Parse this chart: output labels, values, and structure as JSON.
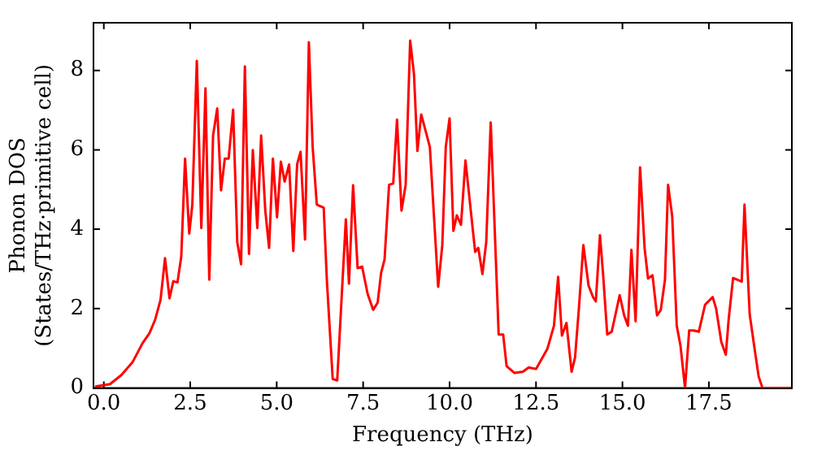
{
  "chart_data": {
    "type": "line",
    "xlabel": "Frequency (THz)",
    "ylabel": "Phonon DOS\n(States/THz·primitive cell)",
    "xlim": [
      -0.3,
      19.9
    ],
    "xticks": [
      {
        "value": 0,
        "label": "0.0"
      },
      {
        "value": 2.5,
        "label": "2.5"
      },
      {
        "value": 5,
        "label": "5.0"
      },
      {
        "value": 7.5,
        "label": "7.5"
      },
      {
        "value": 10,
        "label": "10.0"
      },
      {
        "value": 12.5,
        "label": "12.5"
      },
      {
        "value": 15,
        "label": "15.0"
      },
      {
        "value": 17.5,
        "label": "17.5"
      }
    ],
    "ylim": [
      0,
      9.2
    ],
    "yticks": [
      0,
      2,
      4,
      6,
      8
    ],
    "grid": false,
    "legend": false,
    "marker": "none",
    "line_style": "solid",
    "series": [
      {
        "color": "#ff0000",
        "x": [
          -0.25,
          0.18,
          0.51,
          0.83,
          1.12,
          1.32,
          1.48,
          1.64,
          1.77,
          1.9,
          2.01,
          2.13,
          2.24,
          2.35,
          2.47,
          2.56,
          2.69,
          2.82,
          2.94,
          3.05,
          3.16,
          3.28,
          3.39,
          3.5,
          3.61,
          3.74,
          3.86,
          3.97,
          4.08,
          4.2,
          4.31,
          4.44,
          4.55,
          4.67,
          4.78,
          4.89,
          5.01,
          5.12,
          5.23,
          5.36,
          5.48,
          5.59,
          5.69,
          5.82,
          5.93,
          6.04,
          6.16,
          6.36,
          6.45,
          6.62,
          6.75,
          7.0,
          7.09,
          7.21,
          7.34,
          7.47,
          7.63,
          7.79,
          7.92,
          8.02,
          8.12,
          8.25,
          8.37,
          8.48,
          8.61,
          8.73,
          8.86,
          8.97,
          9.07,
          9.18,
          9.43,
          9.67,
          9.79,
          9.89,
          10.0,
          10.11,
          10.21,
          10.33,
          10.46,
          10.74,
          10.83,
          10.95,
          11.06,
          11.19,
          11.42,
          11.55,
          11.65,
          11.88,
          12.12,
          12.29,
          12.5,
          12.83,
          13.02,
          13.14,
          13.25,
          13.38,
          13.53,
          13.63,
          13.74,
          13.87,
          14.02,
          14.15,
          14.23,
          14.35,
          14.44,
          14.56,
          14.69,
          14.8,
          14.92,
          15.05,
          15.16,
          15.26,
          15.38,
          15.51,
          15.64,
          15.74,
          15.87,
          16.0,
          16.11,
          16.23,
          16.32,
          16.44,
          16.57,
          16.68,
          16.81,
          16.93,
          17.06,
          17.21,
          17.39,
          17.61,
          17.71,
          17.86,
          17.99,
          18.07,
          18.2,
          18.4,
          18.45,
          18.53,
          18.68,
          18.81,
          18.94,
          19.05,
          19.87
        ],
        "values": [
          0.04,
          0.1,
          0.33,
          0.65,
          1.13,
          1.38,
          1.71,
          2.22,
          3.27,
          2.26,
          2.69,
          2.66,
          3.31,
          5.78,
          3.89,
          4.62,
          8.24,
          4.03,
          7.55,
          2.73,
          6.36,
          7.04,
          4.98,
          5.78,
          5.78,
          7.01,
          3.67,
          3.12,
          8.1,
          3.38,
          5.99,
          4.03,
          6.36,
          4.47,
          3.53,
          5.78,
          4.3,
          5.7,
          5.2,
          5.63,
          3.45,
          5.63,
          5.95,
          3.74,
          8.71,
          6.07,
          4.62,
          4.54,
          2.73,
          0.23,
          0.19,
          4.25,
          2.63,
          5.11,
          3.02,
          3.06,
          2.37,
          1.97,
          2.15,
          2.9,
          3.24,
          5.12,
          5.15,
          6.76,
          4.47,
          5.12,
          8.75,
          7.92,
          5.97,
          6.89,
          6.07,
          2.55,
          3.6,
          6.07,
          6.79,
          3.96,
          4.35,
          4.11,
          5.73,
          3.43,
          3.53,
          2.87,
          3.67,
          6.69,
          1.35,
          1.35,
          0.55,
          0.38,
          0.41,
          0.52,
          0.48,
          0.99,
          1.57,
          2.8,
          1.32,
          1.64,
          0.41,
          0.77,
          2.0,
          3.6,
          2.58,
          2.29,
          2.18,
          3.85,
          2.87,
          1.35,
          1.42,
          1.86,
          2.34,
          1.83,
          1.57,
          3.48,
          1.68,
          5.56,
          3.53,
          2.76,
          2.84,
          1.83,
          1.97,
          2.73,
          5.12,
          4.32,
          1.57,
          1.06,
          0.0,
          1.45,
          1.45,
          1.42,
          2.1,
          2.29,
          2.0,
          1.16,
          0.84,
          1.71,
          2.77,
          2.7,
          2.68,
          4.62,
          1.86,
          1.06,
          0.29,
          0.0,
          0.0
        ]
      }
    ]
  }
}
